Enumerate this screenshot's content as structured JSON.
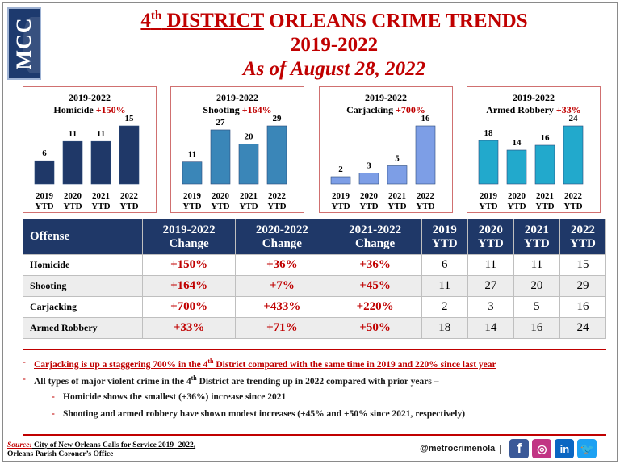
{
  "logo": {
    "text": "MCC"
  },
  "header": {
    "title_district": "4",
    "title_sup": "th",
    "title_district_word": "DISTRICT",
    "title_rest": "ORLEANS CRIME TRENDS",
    "years": "2019-2022",
    "as_of": "As of August 28, 2022"
  },
  "colors": {
    "brand_red": "#c00000",
    "navy": "#1f3868",
    "homicide_bar": "#1f3868",
    "shooting_bar": "#3a86b8",
    "carjacking_bar": "#7d9ee6",
    "armed_robbery_bar": "#22a9cc"
  },
  "chart_data": [
    {
      "type": "bar",
      "title": "2019-2022",
      "offense": "Homicide",
      "pct": "+150%",
      "categories": [
        "2019 YTD",
        "2020 YTD",
        "2021 YTD",
        "2022 YTD"
      ],
      "values": [
        6,
        11,
        11,
        15
      ]
    },
    {
      "type": "bar",
      "title": "2019-2022",
      "offense": "Shooting",
      "pct": "+164%",
      "categories": [
        "2019 YTD",
        "2020 YTD",
        "2021 YTD",
        "2022 YTD"
      ],
      "values": [
        11,
        27,
        20,
        29
      ]
    },
    {
      "type": "bar",
      "title": "2019-2022",
      "offense": "Carjacking",
      "pct": "+700%",
      "categories": [
        "2019 YTD",
        "2020 YTD",
        "2021 YTD",
        "2022 YTD"
      ],
      "values": [
        2,
        3,
        5,
        16
      ]
    },
    {
      "type": "bar",
      "title": "2019-2022",
      "offense": "Armed Robbery",
      "pct": "+33%",
      "categories": [
        "2019 YTD",
        "2020 YTD",
        "2021 YTD",
        "2022 YTD"
      ],
      "values": [
        18,
        14,
        16,
        24
      ]
    }
  ],
  "table": {
    "headers": {
      "offense": "Offense",
      "c1a": "2019-2022",
      "c1b": "Change",
      "c2a": "2020-2022",
      "c2b": "Change",
      "c3a": "2021-2022",
      "c3b": "Change",
      "y1a": "2019",
      "y1b": "YTD",
      "y2a": "2020",
      "y2b": "YTD",
      "y3a": "2021",
      "y3b": "YTD",
      "y4a": "2022",
      "y4b": "YTD"
    },
    "rows": [
      {
        "offense": "Homicide",
        "c1": "+150%",
        "c2": "+36%",
        "c3": "+36%",
        "y2019": "6",
        "y2020": "11",
        "y2021": "11",
        "y2022": "15"
      },
      {
        "offense": "Shooting",
        "c1": "+164%",
        "c2": "+7%",
        "c3": "+45%",
        "y2019": "11",
        "y2020": "27",
        "y2021": "20",
        "y2022": "29"
      },
      {
        "offense": "Carjacking",
        "c1": "+700%",
        "c2": "+433%",
        "c3": "+220%",
        "y2019": "2",
        "y2020": "3",
        "y2021": "5",
        "y2022": "16"
      },
      {
        "offense": "Armed Robbery",
        "c1": "+33%",
        "c2": "+71%",
        "c3": "+50%",
        "y2019": "18",
        "y2020": "14",
        "y2021": "16",
        "y2022": "24"
      }
    ]
  },
  "bullets": {
    "dash": "-",
    "b1_pre": "Carjacking is up a staggering 700% in the 4",
    "b1_sup": "th",
    "b1_post": " District compared with the same time in 2019 and 220% since last year",
    "b2_pre": "All types of major violent crime in the 4",
    "b2_sup": "th",
    "b2_post": " District are trending up in 2022 compared with prior years –",
    "b3": "Homicide shows the smallest (+36%) increase since 2021",
    "b4": "Shooting and armed robbery have shown modest increases (+45% and +50% since 2021, respectively)"
  },
  "footer": {
    "source_label": "Source:",
    "source_line1": " City of New Orleans Calls for Service 2019- 2022,",
    "source_line2": "Orleans Parish Coroner’s Office",
    "handle": "@metrocrimenola",
    "separator": "|",
    "icons": [
      "facebook-icon",
      "instagram-icon",
      "linkedin-icon",
      "twitter-icon"
    ],
    "facebook_glyph": "f",
    "instagram_glyph": "◎",
    "linkedin_glyph": "in",
    "twitter_glyph": "🐦"
  }
}
